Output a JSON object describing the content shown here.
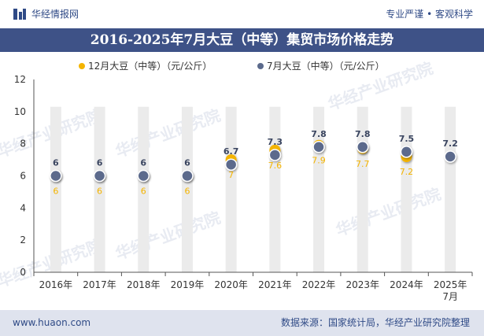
{
  "header": {
    "site_name": "华经情报网",
    "tagline": "专业严谨 • 客观科学"
  },
  "footer": {
    "website": "www.huaon.com",
    "source": "数据来源：国家统计局，华经产业研究院整理"
  },
  "watermark": "华经产业研究院",
  "colors": {
    "brand": "#2f4a86",
    "title_band": "#3e5287",
    "series_dec": "#f4b400",
    "series_jul": "#5b6a8c",
    "column_bg": "#ebebeb"
  },
  "chart_data": {
    "type": "line",
    "title": "2016-2025年7月大豆（中等）集贸市场价格走势",
    "categories": [
      "2016年",
      "2017年",
      "2018年",
      "2019年",
      "2020年",
      "2021年",
      "2022年",
      "2023年",
      "2024年",
      "2025年\n7月"
    ],
    "ylim": [
      0,
      12
    ],
    "yticks": [
      0,
      2,
      4,
      6,
      8,
      10,
      12
    ],
    "legend_position": "top-center",
    "series": [
      {
        "name": "12月大豆（中等）（元/公斤）",
        "values": [
          6,
          6,
          6,
          6,
          7,
          7.6,
          7.9,
          7.7,
          7.2,
          null
        ],
        "labels": [
          "6",
          "6",
          "6",
          "6",
          "7",
          "7.6",
          "7.9",
          "7.7",
          "7.2",
          ""
        ]
      },
      {
        "name": "7月大豆（中等）（元/公斤）",
        "values": [
          6,
          6,
          6,
          6,
          6.7,
          7.3,
          7.8,
          7.8,
          7.5,
          7.2
        ],
        "labels": [
          "6",
          "6",
          "6",
          "6",
          "6.7",
          "7.3",
          "7.8",
          "7.8",
          "7.5",
          "7.2"
        ]
      }
    ]
  }
}
